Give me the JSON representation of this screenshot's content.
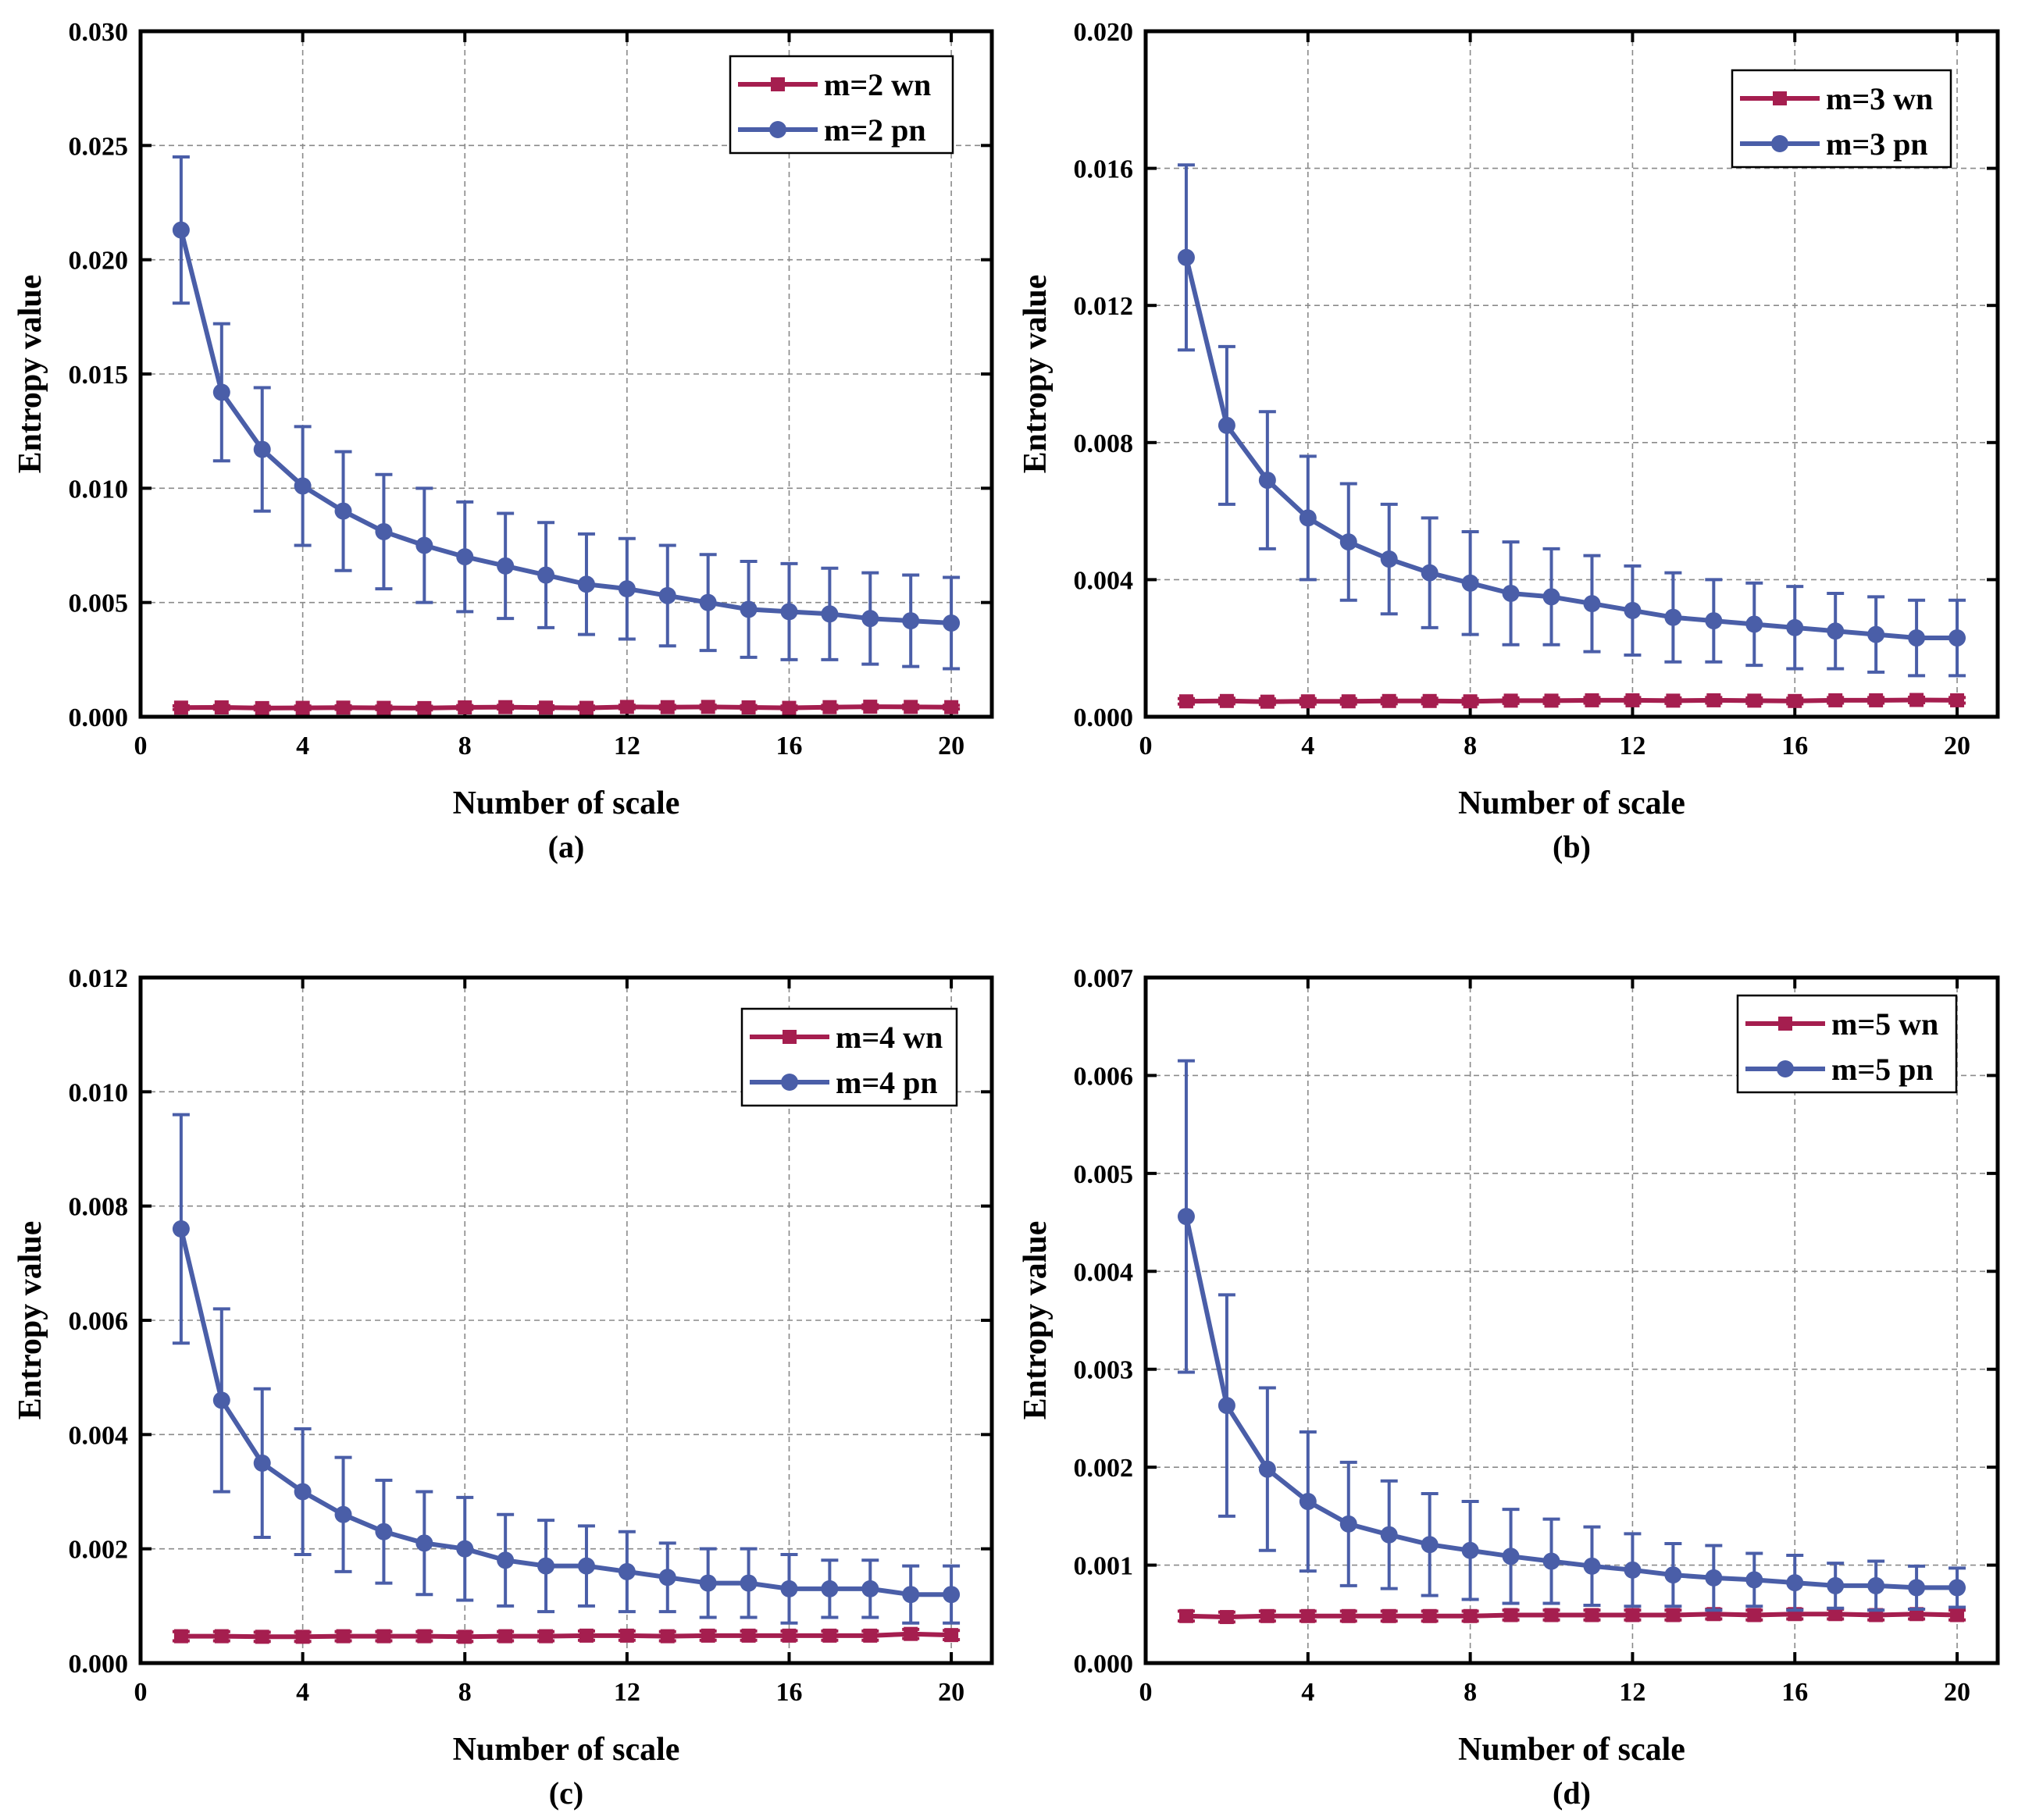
{
  "colors": {
    "wn": "#a51e4f",
    "pn": "#4a5ea8"
  },
  "chart_data": [
    {
      "type": "line",
      "panel": "(a)",
      "xlabel": "Number of scale",
      "ylabel": "Entropy value",
      "xlim": [
        0,
        21
      ],
      "ylim": [
        0,
        0.03
      ],
      "xticks": [
        0,
        4,
        8,
        12,
        16,
        20
      ],
      "yticks": [
        0.0,
        0.005,
        0.01,
        0.015,
        0.02,
        0.025,
        0.03
      ],
      "ytick_labels": [
        "0.000",
        "0.005",
        "0.010",
        "0.015",
        "0.020",
        "0.025",
        "0.030"
      ],
      "grid": true,
      "legend_position": "top-right",
      "x": [
        1,
        2,
        3,
        4,
        5,
        6,
        7,
        8,
        9,
        10,
        11,
        12,
        13,
        14,
        15,
        16,
        17,
        18,
        19,
        20
      ],
      "series": [
        {
          "name": "m=2 wn",
          "marker": "square",
          "values": [
            0.0004,
            0.00041,
            0.00038,
            0.00039,
            0.0004,
            0.00039,
            0.00038,
            0.00041,
            0.00042,
            0.0004,
            0.00039,
            0.00043,
            0.00042,
            0.00043,
            0.00041,
            0.00039,
            0.00042,
            0.00044,
            0.00043,
            0.00042
          ],
          "errors": [
            8e-05,
            8e-05,
            8e-05,
            8e-05,
            8e-05,
            8e-05,
            8e-05,
            8e-05,
            8e-05,
            8e-05,
            8e-05,
            8e-05,
            8e-05,
            8e-05,
            8e-05,
            8e-05,
            8e-05,
            8e-05,
            8e-05,
            8e-05
          ]
        },
        {
          "name": "m=2 pn",
          "marker": "circle",
          "values": [
            0.0213,
            0.0142,
            0.0117,
            0.0101,
            0.009,
            0.0081,
            0.0075,
            0.007,
            0.0066,
            0.0062,
            0.0058,
            0.0056,
            0.0053,
            0.005,
            0.0047,
            0.0046,
            0.0045,
            0.0043,
            0.0042,
            0.0041
          ],
          "errors": [
            0.0032,
            0.003,
            0.0027,
            0.0026,
            0.0026,
            0.0025,
            0.0025,
            0.0024,
            0.0023,
            0.0023,
            0.0022,
            0.0022,
            0.0022,
            0.0021,
            0.0021,
            0.0021,
            0.002,
            0.002,
            0.002,
            0.002
          ]
        }
      ]
    },
    {
      "type": "line",
      "panel": "(b)",
      "xlabel": "Number of scale",
      "ylabel": "Entropy value",
      "xlim": [
        0,
        21
      ],
      "ylim": [
        0,
        0.02
      ],
      "xticks": [
        0,
        4,
        8,
        12,
        16,
        20
      ],
      "yticks": [
        0.0,
        0.004,
        0.008,
        0.012,
        0.016,
        0.02
      ],
      "ytick_labels": [
        "0.000",
        "0.004",
        "0.008",
        "0.012",
        "0.016",
        "0.020"
      ],
      "grid": true,
      "legend_position": "top-right",
      "x": [
        1,
        2,
        3,
        4,
        5,
        6,
        7,
        8,
        9,
        10,
        11,
        12,
        13,
        14,
        15,
        16,
        17,
        18,
        19,
        20
      ],
      "series": [
        {
          "name": "m=3 wn",
          "marker": "square",
          "values": [
            0.00045,
            0.00046,
            0.00044,
            0.00045,
            0.00045,
            0.00046,
            0.00046,
            0.00045,
            0.00047,
            0.00047,
            0.00048,
            0.00048,
            0.00047,
            0.00048,
            0.00047,
            0.00046,
            0.00048,
            0.00048,
            0.00049,
            0.00048
          ],
          "errors": [
            8e-05,
            8e-05,
            8e-05,
            8e-05,
            8e-05,
            8e-05,
            8e-05,
            8e-05,
            8e-05,
            8e-05,
            8e-05,
            8e-05,
            8e-05,
            8e-05,
            8e-05,
            8e-05,
            8e-05,
            8e-05,
            8e-05,
            8e-05
          ]
        },
        {
          "name": "m=3 pn",
          "marker": "circle",
          "values": [
            0.0134,
            0.0085,
            0.0069,
            0.0058,
            0.0051,
            0.0046,
            0.0042,
            0.0039,
            0.0036,
            0.0035,
            0.0033,
            0.0031,
            0.0029,
            0.0028,
            0.0027,
            0.0026,
            0.0025,
            0.0024,
            0.0023,
            0.0023
          ],
          "errors": [
            0.0027,
            0.0023,
            0.002,
            0.0018,
            0.0017,
            0.0016,
            0.0016,
            0.0015,
            0.0015,
            0.0014,
            0.0014,
            0.0013,
            0.0013,
            0.0012,
            0.0012,
            0.0012,
            0.0011,
            0.0011,
            0.0011,
            0.0011
          ]
        }
      ]
    },
    {
      "type": "line",
      "panel": "(c)",
      "xlabel": "Number of scale",
      "ylabel": "Entropy value",
      "xlim": [
        0,
        21
      ],
      "ylim": [
        0,
        0.012
      ],
      "xticks": [
        0,
        4,
        8,
        12,
        16,
        20
      ],
      "yticks": [
        0.0,
        0.002,
        0.004,
        0.006,
        0.008,
        0.01,
        0.012
      ],
      "ytick_labels": [
        "0.000",
        "0.002",
        "0.004",
        "0.006",
        "0.008",
        "0.010",
        "0.012"
      ],
      "grid": true,
      "legend_position": "top-right",
      "x": [
        1,
        2,
        3,
        4,
        5,
        6,
        7,
        8,
        9,
        10,
        11,
        12,
        13,
        14,
        15,
        16,
        17,
        18,
        19,
        20
      ],
      "series": [
        {
          "name": "m=4 wn",
          "marker": "square",
          "values": [
            0.00047,
            0.00047,
            0.00046,
            0.00046,
            0.00047,
            0.00047,
            0.00047,
            0.00046,
            0.00047,
            0.00047,
            0.00048,
            0.00048,
            0.00047,
            0.00048,
            0.00048,
            0.00048,
            0.00048,
            0.00048,
            0.00051,
            0.00049
          ],
          "errors": [
            8e-05,
            8e-05,
            8e-05,
            8e-05,
            8e-05,
            8e-05,
            8e-05,
            8e-05,
            8e-05,
            8e-05,
            8e-05,
            8e-05,
            8e-05,
            8e-05,
            8e-05,
            8e-05,
            8e-05,
            8e-05,
            8e-05,
            8e-05
          ]
        },
        {
          "name": "m=4 pn",
          "marker": "circle",
          "values": [
            0.0076,
            0.0046,
            0.0035,
            0.003,
            0.0026,
            0.0023,
            0.0021,
            0.002,
            0.0018,
            0.0017,
            0.0017,
            0.0016,
            0.0015,
            0.0014,
            0.0014,
            0.0013,
            0.0013,
            0.0013,
            0.0012,
            0.0012
          ],
          "errors": [
            0.002,
            0.0016,
            0.0013,
            0.0011,
            0.001,
            0.0009,
            0.0009,
            0.0009,
            0.0008,
            0.0008,
            0.0007,
            0.0007,
            0.0006,
            0.0006,
            0.0006,
            0.0006,
            0.0005,
            0.0005,
            0.0005,
            0.0005
          ]
        }
      ]
    },
    {
      "type": "line",
      "panel": "(d)",
      "xlabel": "Number of scale",
      "ylabel": "Entropy value",
      "xlim": [
        0,
        21
      ],
      "ylim": [
        0,
        0.007
      ],
      "xticks": [
        0,
        4,
        8,
        12,
        16,
        20
      ],
      "yticks": [
        0.0,
        0.001,
        0.002,
        0.003,
        0.004,
        0.005,
        0.006,
        0.007
      ],
      "ytick_labels": [
        "0.000",
        "0.001",
        "0.002",
        "0.003",
        "0.004",
        "0.005",
        "0.006",
        "0.007"
      ],
      "grid": true,
      "legend_position": "top-right",
      "x": [
        1,
        2,
        3,
        4,
        5,
        6,
        7,
        8,
        9,
        10,
        11,
        12,
        13,
        14,
        15,
        16,
        17,
        18,
        19,
        20
      ],
      "series": [
        {
          "name": "m=5 wn",
          "marker": "square",
          "values": [
            0.00048,
            0.00047,
            0.00048,
            0.00048,
            0.00048,
            0.00048,
            0.00048,
            0.00048,
            0.00049,
            0.00049,
            0.00049,
            0.00049,
            0.00049,
            0.0005,
            0.00049,
            0.0005,
            0.0005,
            0.00049,
            0.0005,
            0.00049
          ],
          "errors": [
            5e-05,
            5e-05,
            5e-05,
            5e-05,
            5e-05,
            5e-05,
            5e-05,
            5e-05,
            5e-05,
            5e-05,
            5e-05,
            5e-05,
            5e-05,
            5e-05,
            5e-05,
            5e-05,
            5e-05,
            5e-05,
            5e-05,
            5e-05
          ]
        },
        {
          "name": "m=5 pn",
          "marker": "circle",
          "values": [
            0.00456,
            0.00263,
            0.00198,
            0.00165,
            0.00142,
            0.00131,
            0.00121,
            0.00115,
            0.00109,
            0.00104,
            0.00099,
            0.00095,
            0.0009,
            0.00087,
            0.00085,
            0.00082,
            0.00079,
            0.00079,
            0.00077,
            0.00077
          ],
          "errors": [
            0.00159,
            0.00113,
            0.00083,
            0.00071,
            0.00063,
            0.00055,
            0.00052,
            0.0005,
            0.00048,
            0.00043,
            0.0004,
            0.00037,
            0.00032,
            0.00033,
            0.00027,
            0.00028,
            0.00023,
            0.00025,
            0.00022,
            0.0002
          ]
        }
      ]
    }
  ]
}
